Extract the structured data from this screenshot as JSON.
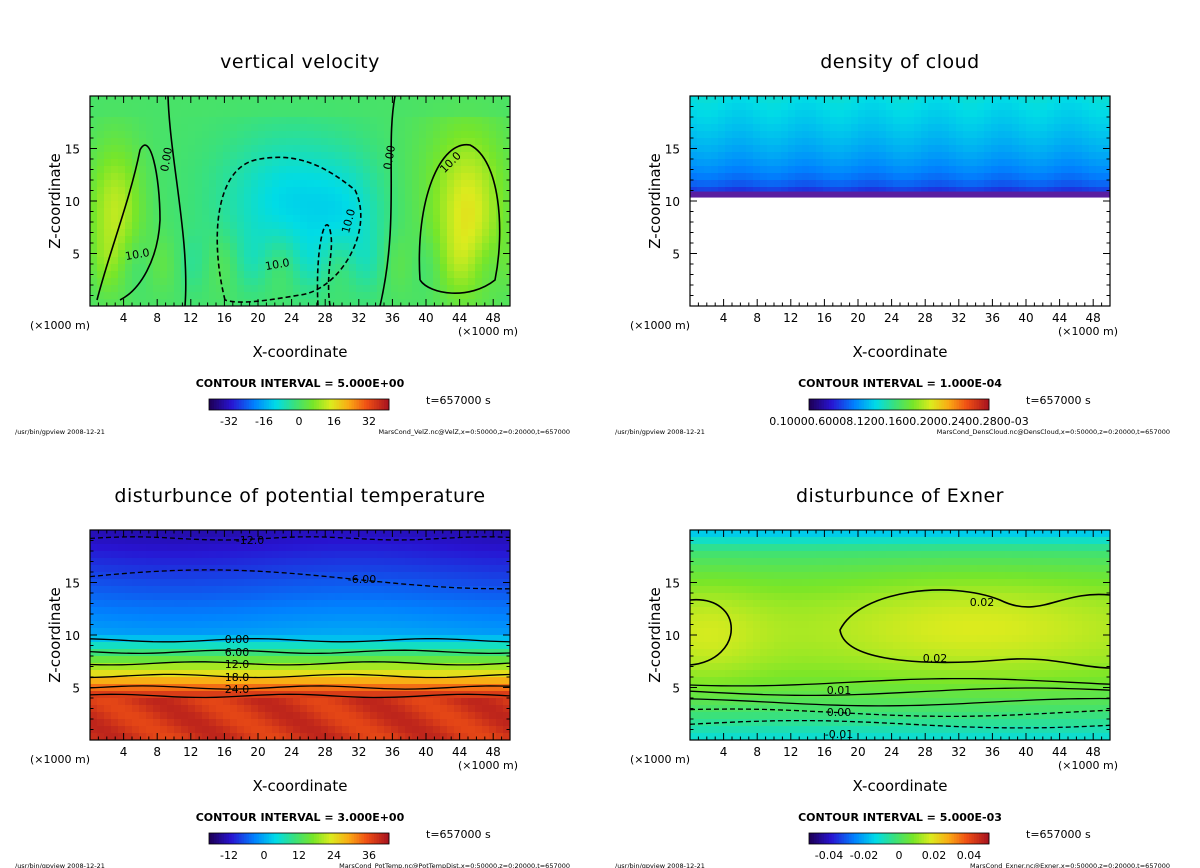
{
  "panels": [
    {
      "id": "velz",
      "title": "vertical velocity",
      "xlabel": "X-coordinate",
      "ylabel": "Z-coordinate",
      "x_unit": "(×1000 m)",
      "x_ticks": [
        "4",
        "8",
        "12",
        "16",
        "20",
        "24",
        "28",
        "32",
        "36",
        "40",
        "44",
        "48"
      ],
      "y_ticks": [
        "5",
        "10",
        "15"
      ],
      "contour_interval": "CONTOUR INTERVAL = 5.000E+00",
      "time": "t=657000 s",
      "colorbar_ticks": [
        "-32",
        "-16",
        "0",
        "16",
        "32"
      ],
      "footer_left": "/usr/bin/gpview  2008-12-21",
      "footer_right": "MarsCond_VelZ.nc@VelZ,x=0:50000,z=0:20000,t=657000",
      "contour_labels": [
        "0.00",
        "0.00",
        "10.0",
        "10.0",
        "10.0",
        "10.0"
      ]
    },
    {
      "id": "cloud",
      "title": "density of cloud",
      "xlabel": "X-coordinate",
      "ylabel": "Z-coordinate",
      "x_unit": "(×1000 m)",
      "x_ticks": [
        "4",
        "8",
        "12",
        "16",
        "20",
        "24",
        "28",
        "32",
        "36",
        "40",
        "44",
        "48"
      ],
      "y_ticks": [
        "5",
        "10",
        "15"
      ],
      "contour_interval": "CONTOUR INTERVAL = 1.000E-04",
      "time": "t=657000 s",
      "colorbar_ticks": [
        "0.10000.60008.1200.1600.2000.2400.2800-03"
      ],
      "footer_left": "/usr/bin/gpview  2008-12-21",
      "footer_right": "MarsCond_DensCloud.nc@DensCloud,x=0:50000,z=0:20000,t=657000",
      "contour_labels": []
    },
    {
      "id": "pottemp",
      "title": "disturbunce of potential temperature",
      "xlabel": "X-coordinate",
      "ylabel": "Z-coordinate",
      "x_unit": "(×1000 m)",
      "x_ticks": [
        "4",
        "8",
        "12",
        "16",
        "20",
        "24",
        "28",
        "32",
        "36",
        "40",
        "44",
        "48"
      ],
      "y_ticks": [
        "5",
        "10",
        "15"
      ],
      "contour_interval": "CONTOUR INTERVAL = 3.000E+00",
      "time": "t=657000 s",
      "colorbar_ticks": [
        "-12",
        "0",
        "12",
        "24",
        "36"
      ],
      "footer_left": "/usr/bin/gpview  2008-12-21",
      "footer_right": "MarsCond_PotTemp.nc@PotTempDist,x=0:50000,z=0:20000,t=657000",
      "contour_labels": [
        "-12.0",
        "-6.00",
        "0.00",
        "6.00",
        "12.0",
        "18.0",
        "24.0"
      ]
    },
    {
      "id": "exner",
      "title": "disturbunce of Exner",
      "xlabel": "X-coordinate",
      "ylabel": "Z-coordinate",
      "x_unit": "(×1000 m)",
      "x_ticks": [
        "4",
        "8",
        "12",
        "16",
        "20",
        "24",
        "28",
        "32",
        "36",
        "40",
        "44",
        "48"
      ],
      "y_ticks": [
        "5",
        "10",
        "15"
      ],
      "contour_interval": "CONTOUR INTERVAL = 5.000E-03",
      "time": "t=657000 s",
      "colorbar_ticks": [
        "-0.04",
        "-0.02",
        "0",
        "0.02",
        "0.04"
      ],
      "footer_left": "/usr/bin/gpview  2008-12-21",
      "footer_right": "MarsCond_Exner.nc@Exner,x=0:50000,z=0:20000,t=657000",
      "contour_labels": [
        "0.02",
        "0.02",
        "0.01",
        "0.00",
        "-0.01"
      ]
    }
  ],
  "chart_data": [
    {
      "type": "heatmap",
      "title": "vertical velocity",
      "xlabel": "X-coordinate",
      "ylabel": "Z-coordinate",
      "xlim": [
        0,
        50
      ],
      "ylim": [
        0,
        20
      ],
      "clim": [
        -40,
        40
      ],
      "contour_interval": 5.0
    },
    {
      "type": "heatmap",
      "title": "density of cloud",
      "xlabel": "X-coordinate",
      "ylabel": "Z-coordinate",
      "xlim": [
        0,
        50
      ],
      "ylim": [
        0,
        20
      ],
      "cloud_base_z": 10.5,
      "contour_interval": 0.0001
    },
    {
      "type": "heatmap",
      "title": "disturbunce of potential temperature",
      "xlabel": "X-coordinate",
      "ylabel": "Z-coordinate",
      "xlim": [
        0,
        50
      ],
      "ylim": [
        0,
        20
      ],
      "clim": [
        -18,
        42
      ],
      "contour_interval": 3.0,
      "contour_levels": [
        -12,
        -6,
        0,
        6,
        12,
        18,
        24
      ]
    },
    {
      "type": "heatmap",
      "title": "disturbunce of Exner",
      "xlabel": "X-coordinate",
      "ylabel": "Z-coordinate",
      "xlim": [
        0,
        50
      ],
      "ylim": [
        0,
        20
      ],
      "clim": [
        -0.05,
        0.05
      ],
      "contour_interval": 0.005,
      "contour_levels": [
        -0.01,
        0.0,
        0.01,
        0.02
      ]
    }
  ]
}
